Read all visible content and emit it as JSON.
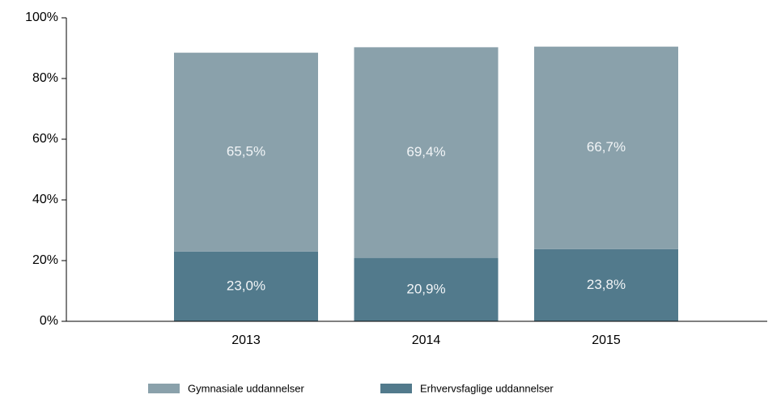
{
  "chart_data": {
    "type": "stacked_bar",
    "categories": [
      "2013",
      "2014",
      "2015"
    ],
    "series": [
      {
        "name": "Gymnasiale uddannelser",
        "color": "#8aa1ab",
        "values": [
          65.5,
          69.4,
          66.7
        ],
        "value_labels": [
          "65,5%",
          "69,4%",
          "66,7%"
        ]
      },
      {
        "name": "Erhvervsfaglige uddannelser",
        "color": "#527a8c",
        "values": [
          23.0,
          20.9,
          23.8
        ],
        "value_labels": [
          "23,0%",
          "20,9%",
          "23,8%"
        ]
      }
    ],
    "ylim": [
      0,
      100
    ],
    "yticks": [
      {
        "value": 0,
        "label": "0%"
      },
      {
        "value": 20,
        "label": "20%"
      },
      {
        "value": 40,
        "label": "40%"
      },
      {
        "value": 60,
        "label": "60%"
      },
      {
        "value": 80,
        "label": "80%"
      },
      {
        "value": 100,
        "label": "100%"
      }
    ],
    "legend": "bottom"
  }
}
